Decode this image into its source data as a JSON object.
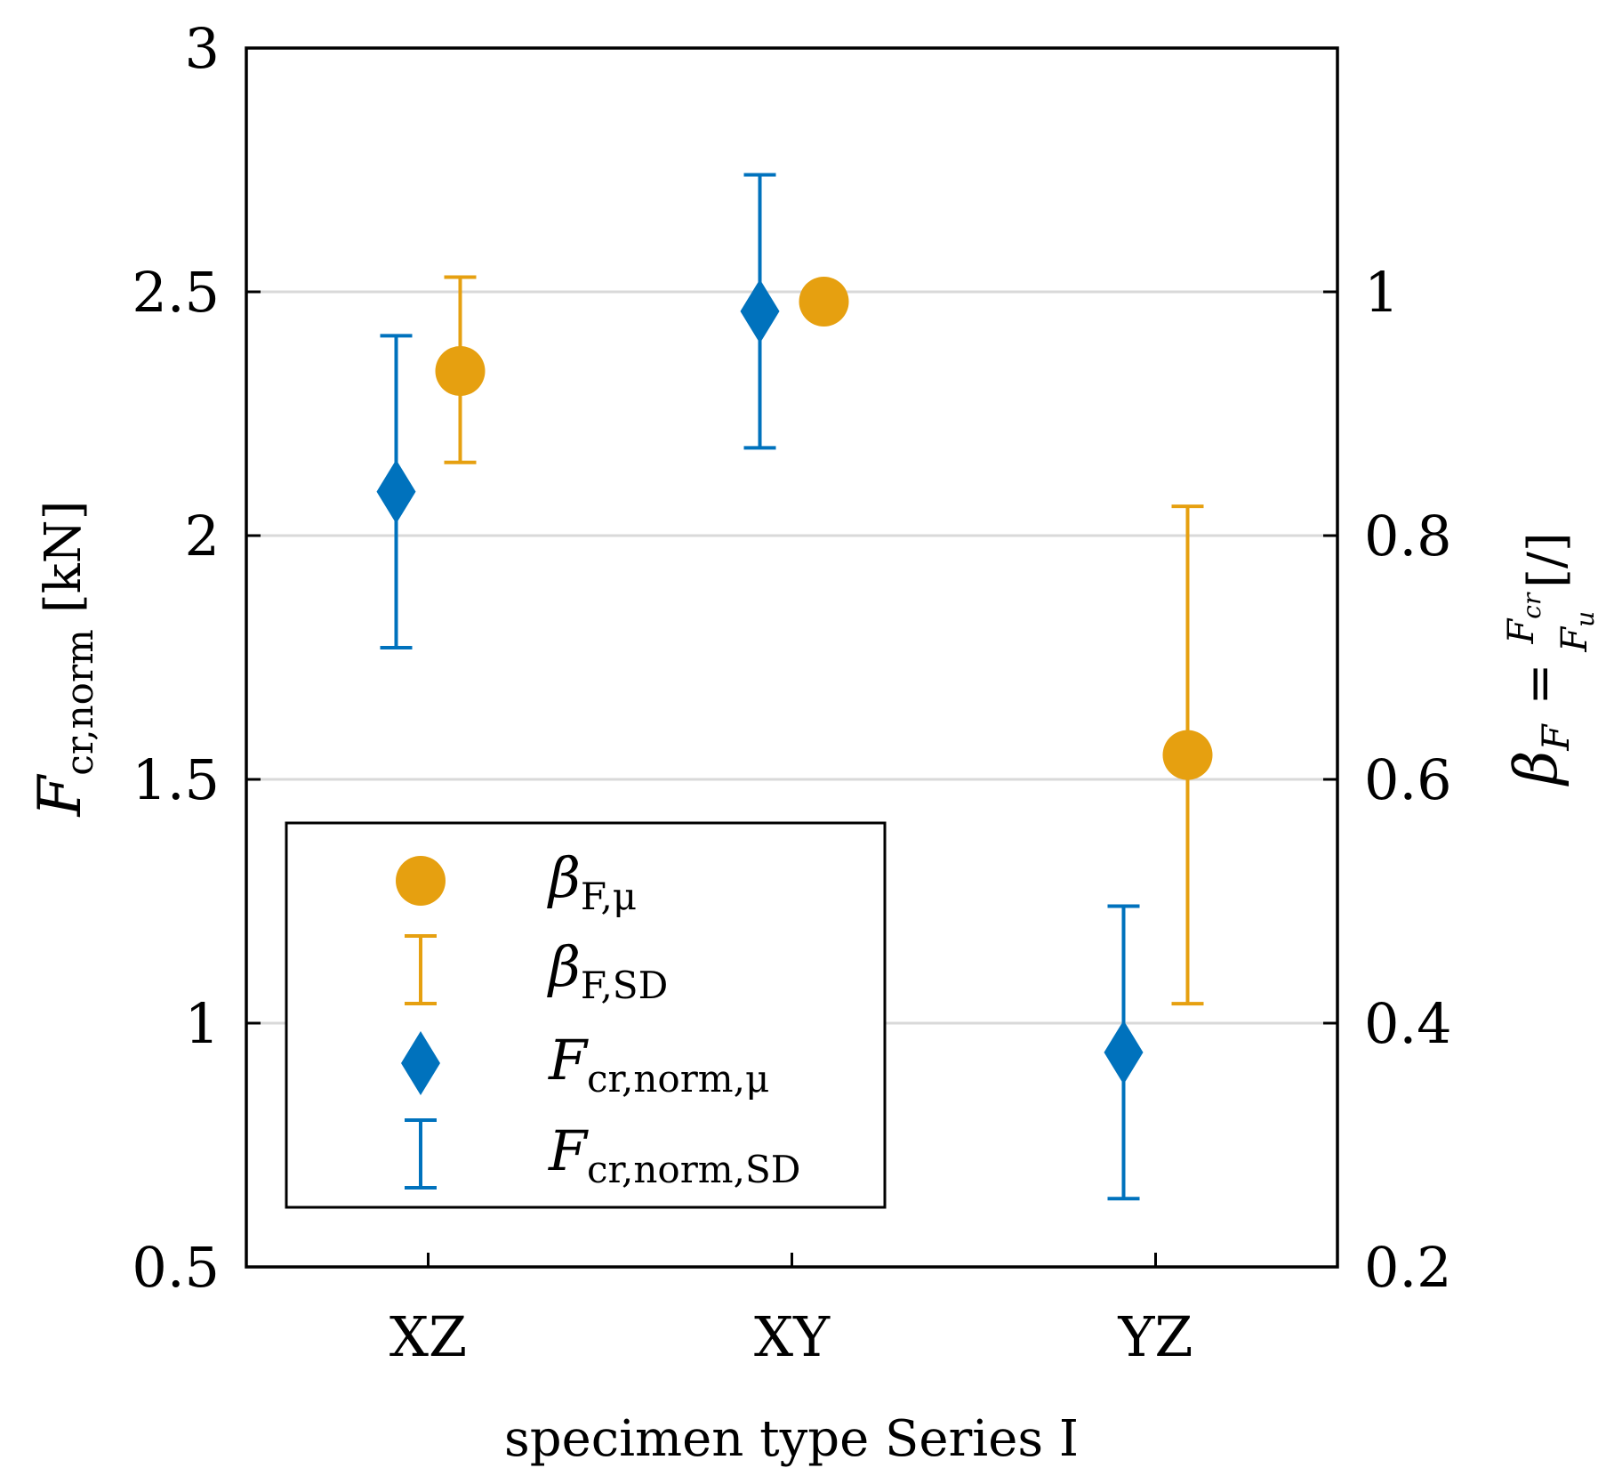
{
  "chart_data": {
    "type": "scatter",
    "categories": [
      "XZ",
      "XY",
      "YZ"
    ],
    "xlabel": "specimen type Series I",
    "y_left": {
      "label_main": "F",
      "label_sub": "cr,norm",
      "label_unit": "[kN]",
      "lim": [
        0.5,
        3
      ],
      "ticks": [
        0.5,
        1,
        1.5,
        2,
        2.5,
        3
      ],
      "tick_labels": [
        "0.5",
        "1",
        "1.5",
        "2",
        "2.5",
        "3"
      ]
    },
    "y_right": {
      "label_beta": "β",
      "label_beta_sub": "F",
      "label_eq": "=",
      "label_num": "F",
      "label_num_sub": "cr",
      "label_den": "F",
      "label_den_sub": "u",
      "label_unit": "[/]",
      "lim": [
        0.2,
        1.2
      ],
      "ticks": [
        0.2,
        0.4,
        0.6,
        0.8,
        1.0
      ],
      "tick_labels": [
        "0.2",
        "0.4",
        "0.6",
        "0.8",
        "1"
      ]
    },
    "grid": true,
    "legend_position": "lower-left",
    "series": [
      {
        "id": "fcr",
        "axis": "left",
        "marker": "diamond",
        "color": "#0072bd",
        "mean": [
          2.09,
          2.46,
          0.94
        ],
        "sd_low": [
          1.77,
          2.18,
          0.64
        ],
        "sd_high": [
          2.41,
          2.74,
          1.24
        ]
      },
      {
        "id": "beta",
        "axis": "right",
        "marker": "circle",
        "color": "#e6a010",
        "mean": [
          0.935,
          0.992,
          0.62
        ],
        "sd_low": [
          0.86,
          null,
          0.416
        ],
        "sd_high": [
          1.012,
          null,
          0.824
        ]
      }
    ],
    "legend": [
      {
        "marker": "circle",
        "color": "#e6a010",
        "main": "β",
        "sub": "F,μ"
      },
      {
        "marker": "errorbar",
        "color": "#e6a010",
        "main": "β",
        "sub": "F,SD"
      },
      {
        "marker": "diamond",
        "color": "#0072bd",
        "main": "F",
        "sub": "cr,norm,μ"
      },
      {
        "marker": "errorbar",
        "color": "#0072bd",
        "main": "F",
        "sub": "cr,norm,SD"
      }
    ]
  }
}
